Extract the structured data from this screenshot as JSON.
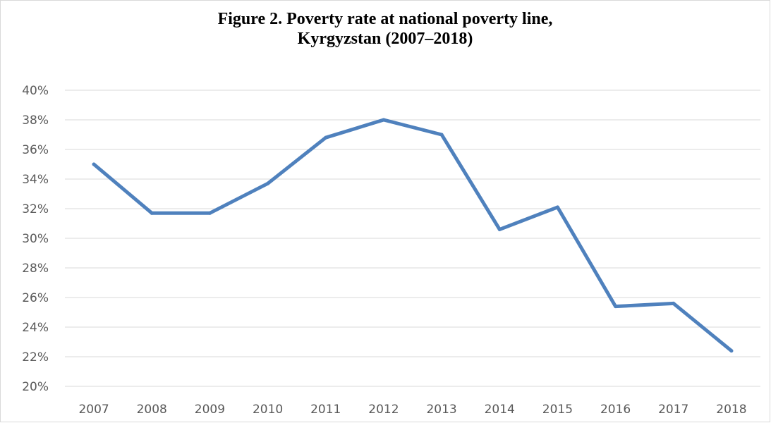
{
  "chart_data": {
    "type": "line",
    "title": "Figure 2. Poverty rate at national poverty line,\nKyrgyzstan (2007–2018)",
    "xlabel": "",
    "ylabel": "",
    "categories": [
      "2007",
      "2008",
      "2009",
      "2010",
      "2011",
      "2012",
      "2013",
      "2014",
      "2015",
      "2016",
      "2017",
      "2018"
    ],
    "series": [
      {
        "values": [
          35.0,
          31.7,
          31.7,
          33.7,
          36.8,
          38.0,
          37.0,
          30.6,
          32.1,
          25.4,
          25.6,
          22.4
        ]
      }
    ],
    "ylim": [
      20,
      40
    ],
    "yticks": [
      20,
      22,
      24,
      26,
      28,
      30,
      32,
      34,
      36,
      38,
      40
    ],
    "ytick_format": "percent",
    "grid": true,
    "legend": "none",
    "colors": {
      "line": "#4f81bd",
      "grid": "#d9d9d9",
      "tick_text": "#595959"
    }
  }
}
